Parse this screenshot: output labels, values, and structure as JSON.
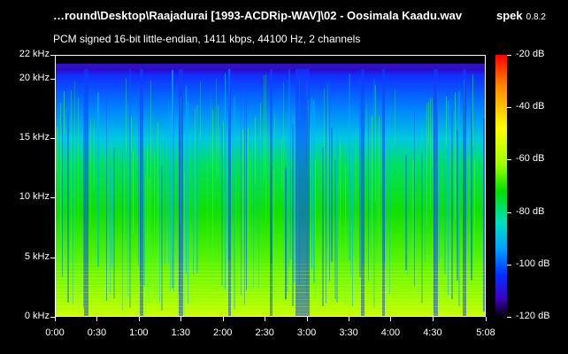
{
  "header": {
    "file_title": "…round\\Desktop\\Raajadurai [1993-ACDRip-WAV]\\02 - Oosimala Kaadu.wav",
    "app_name": "spek",
    "app_version": "0.8.2",
    "audio_info": "PCM signed 16-bit little-endian, 1411 kbps, 44100 Hz, 2 channels"
  },
  "y_axis": {
    "ticks": [
      "22 kHz",
      "20 kHz",
      "15 kHz",
      "10 kHz",
      "5 kHz",
      "0 kHz"
    ],
    "values": [
      22,
      20,
      15,
      10,
      5,
      0
    ]
  },
  "x_axis": {
    "ticks": [
      "0:00",
      "0:30",
      "1:00",
      "1:30",
      "2:00",
      "2:30",
      "3:00",
      "3:30",
      "4:00",
      "4:30",
      "5:08"
    ],
    "values": [
      0,
      30,
      60,
      90,
      120,
      150,
      180,
      210,
      240,
      270,
      308
    ]
  },
  "legend": {
    "ticks": [
      "-20 dB",
      "-40 dB",
      "-60 dB",
      "-80 dB",
      "-100 dB",
      "-120 dB"
    ],
    "values": [
      -20,
      -40,
      -60,
      -80,
      -100,
      -120
    ]
  },
  "colors": {
    "background": "#000000",
    "text": "#ffffff"
  }
}
